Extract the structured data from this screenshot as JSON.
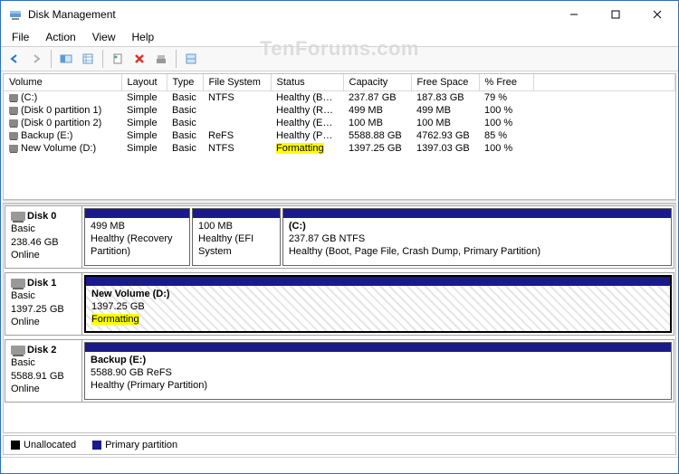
{
  "window": {
    "title": "Disk Management"
  },
  "menu": {
    "file": "File",
    "action": "Action",
    "view": "View",
    "help": "Help"
  },
  "watermark": "TenForums.com",
  "columns": {
    "volume": "Volume",
    "layout": "Layout",
    "type": "Type",
    "fs": "File System",
    "status": "Status",
    "capacity": "Capacity",
    "free": "Free Space",
    "pctfree": "% Free"
  },
  "col_widths": {
    "volume": 130,
    "layout": 50,
    "type": 40,
    "fs": 75,
    "status": 80,
    "capacity": 75,
    "free": 75,
    "pctfree": 60
  },
  "volumes": [
    {
      "name": "(C:)",
      "layout": "Simple",
      "type": "Basic",
      "fs": "NTFS",
      "status": "Healthy (B…",
      "capacity": "237.87 GB",
      "free": "187.83 GB",
      "pctfree": "79 %",
      "highlight": false
    },
    {
      "name": "(Disk 0 partition 1)",
      "layout": "Simple",
      "type": "Basic",
      "fs": "",
      "status": "Healthy (R…",
      "capacity": "499 MB",
      "free": "499 MB",
      "pctfree": "100 %",
      "highlight": false
    },
    {
      "name": "(Disk 0 partition 2)",
      "layout": "Simple",
      "type": "Basic",
      "fs": "",
      "status": "Healthy (E…",
      "capacity": "100 MB",
      "free": "100 MB",
      "pctfree": "100 %",
      "highlight": false
    },
    {
      "name": "Backup (E:)",
      "layout": "Simple",
      "type": "Basic",
      "fs": "ReFS",
      "status": "Healthy (P…",
      "capacity": "5588.88 GB",
      "free": "4762.93 GB",
      "pctfree": "85 %",
      "highlight": false
    },
    {
      "name": "New Volume (D:)",
      "layout": "Simple",
      "type": "Basic",
      "fs": "NTFS",
      "status": "Formatting",
      "capacity": "1397.25 GB",
      "free": "1397.03 GB",
      "pctfree": "100 %",
      "highlight": true
    }
  ],
  "disks": [
    {
      "name": "Disk 0",
      "type": "Basic",
      "size": "238.46 GB",
      "state": "Online",
      "parts": [
        {
          "label": "",
          "size": "499 MB",
          "status": "Healthy (Recovery Partition)",
          "flex": 18,
          "bold": false,
          "hatched": false,
          "highlight": false,
          "sel": false
        },
        {
          "label": "",
          "size": "100 MB",
          "status": "Healthy (EFI System",
          "flex": 15,
          "bold": false,
          "hatched": false,
          "highlight": false,
          "sel": false
        },
        {
          "label": "(C:)",
          "size": "237.87 GB NTFS",
          "status": "Healthy (Boot, Page File, Crash Dump, Primary Partition)",
          "flex": 67,
          "bold": true,
          "hatched": false,
          "highlight": false,
          "sel": false
        }
      ]
    },
    {
      "name": "Disk 1",
      "type": "Basic",
      "size": "1397.25 GB",
      "state": "Online",
      "parts": [
        {
          "label": "New Volume  (D:)",
          "size": "1397.25 GB",
          "status": "Formatting",
          "flex": 100,
          "bold": true,
          "hatched": true,
          "highlight": true,
          "sel": true
        }
      ]
    },
    {
      "name": "Disk 2",
      "type": "Basic",
      "size": "5588.91 GB",
      "state": "Online",
      "parts": [
        {
          "label": "Backup  (E:)",
          "size": "5588.90 GB ReFS",
          "status": "Healthy (Primary Partition)",
          "flex": 100,
          "bold": true,
          "hatched": false,
          "highlight": false,
          "sel": false
        }
      ]
    }
  ],
  "legend": {
    "unalloc": "Unallocated",
    "primary": "Primary partition"
  },
  "colors": {
    "stripe_primary": "#1a1a8a",
    "unallocated": "#000000",
    "highlight": "#ffff00",
    "border": "#c0c0c0"
  }
}
